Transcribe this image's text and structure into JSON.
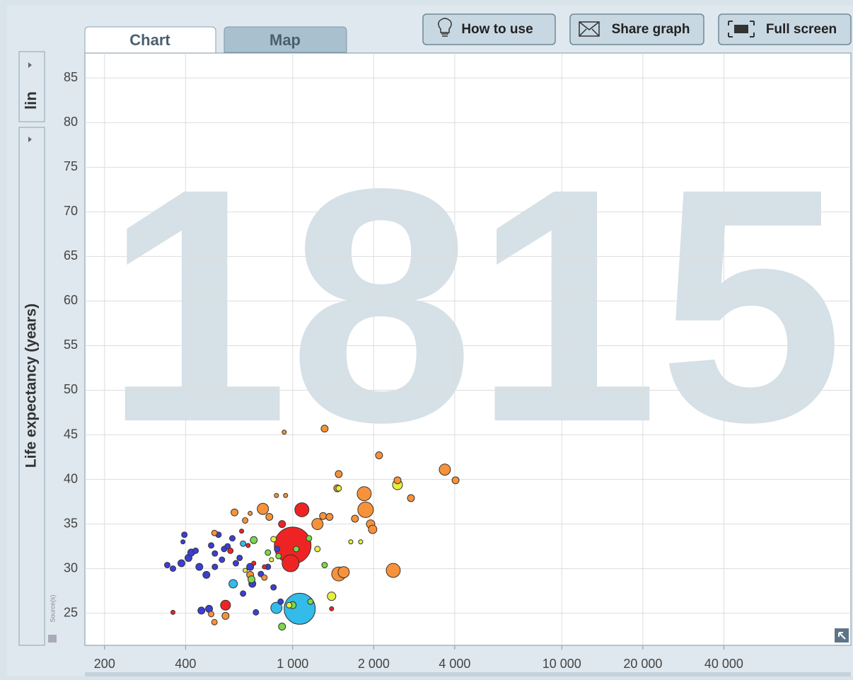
{
  "ui": {
    "tabs": [
      "Chart",
      "Map"
    ],
    "buttons": [
      "How to use",
      "Share graph",
      "Full screen"
    ],
    "scale_selector": "lin",
    "source_label": "Source(s)"
  },
  "chart_data": {
    "type": "scatter",
    "year_label": "1815",
    "y_label": "Life expectancy (years)",
    "xscale": "log",
    "grid": true,
    "xlim": [
      169,
      118600
    ],
    "ylim": [
      21.4,
      87.8
    ],
    "xticks": [
      200,
      400,
      {
        "value": 1000,
        "label": "1 000"
      },
      {
        "value": 2000,
        "label": "2 000"
      },
      {
        "value": 4000,
        "label": "4 000"
      },
      {
        "value": 10000,
        "label": "10 000"
      },
      {
        "value": 20000,
        "label": "20 000"
      },
      {
        "value": 40000,
        "label": "40 000"
      }
    ],
    "yticks": [
      25,
      30,
      35,
      40,
      45,
      50,
      55,
      60,
      65,
      70,
      75,
      80,
      85
    ],
    "series": [
      {
        "color": "#3b3fd6",
        "x": [
          342,
          359,
          396,
          391,
          386,
          410,
          420,
          436,
          450,
          478,
          498,
          514,
          530,
          514,
          546,
          556,
          573,
          597,
          458,
          489,
          615,
          635,
          695,
          708,
          654,
          730,
          762,
          809,
          849,
          875,
          902
        ],
        "values": [
          30.4,
          30.0,
          33.8,
          33.0,
          30.6,
          31.2,
          31.8,
          32.0,
          30.2,
          29.3,
          32.6,
          31.7,
          33.8,
          30.2,
          31.0,
          32.2,
          32.5,
          33.4,
          25.3,
          25.5,
          30.6,
          31.2,
          30.2,
          28.3,
          27.2,
          25.1,
          29.4,
          30.2,
          27.9,
          32.2,
          26.3
        ],
        "sizes": [
          7,
          7,
          7,
          4,
          11,
          11,
          11,
          7,
          11,
          11,
          7,
          7,
          7,
          7,
          7,
          7,
          7,
          7,
          11,
          11,
          7,
          7,
          11,
          11,
          7,
          7,
          7,
          7,
          7,
          7,
          7
        ]
      },
      {
        "color": "#ee2424",
        "x": [
          359,
          563,
          587,
          646,
          683,
          913,
          1000,
          982,
          1082,
          1395,
          717,
          785
        ],
        "values": [
          25.1,
          25.9,
          32.0,
          34.2,
          32.6,
          35.0,
          32.6,
          30.6,
          36.6,
          25.5,
          30.6,
          30.2
        ],
        "sizes": [
          4,
          22,
          7,
          4,
          4,
          11,
          300,
          64,
          44,
          4,
          4,
          4
        ]
      },
      {
        "color": "#f7923a",
        "x": [
          498,
          512,
          512,
          563,
          608,
          666,
          695,
          775,
          819,
          870,
          941,
          930,
          1314,
          1236,
          1297,
          1370,
          1483,
          1465,
          1483,
          1547,
          1704,
          1844,
          1866,
          1948,
          1982,
          2094,
          2452,
          2364,
          2751,
          3676,
          4029,
          695,
          785
        ],
        "values": [
          24.9,
          24.0,
          34.0,
          24.7,
          36.3,
          35.4,
          36.2,
          36.7,
          35.8,
          38.2,
          38.2,
          45.3,
          45.7,
          35.0,
          35.9,
          35.8,
          40.6,
          39.0,
          29.4,
          29.6,
          35.6,
          38.4,
          36.6,
          35.0,
          34.4,
          42.7,
          39.9,
          29.8,
          37.9,
          41.1,
          39.9,
          29.3,
          29.0
        ],
        "sizes": [
          7,
          7,
          7,
          11,
          11,
          7,
          4,
          28,
          11,
          4,
          4,
          4,
          11,
          28,
          11,
          11,
          11,
          11,
          44,
          28,
          11,
          44,
          54,
          16,
          16,
          11,
          11,
          44,
          11,
          28,
          11,
          11,
          7
        ]
      },
      {
        "color": "#e6f03c",
        "x": [
          2452,
          1395,
          1644,
          1789,
          1483,
          849,
          1236,
          970,
          666,
          834
        ],
        "values": [
          39.4,
          26.9,
          33.0,
          33.0,
          39.0,
          33.3,
          32.2,
          25.9,
          29.8,
          31.0
        ],
        "sizes": [
          22,
          16,
          4,
          4,
          7,
          7,
          7,
          7,
          4,
          4
        ]
      },
      {
        "color": "#7ad94a",
        "x": [
          913,
          717,
          809,
          886,
          1031,
          1150,
          1314,
          703,
          1000,
          1164
        ],
        "values": [
          23.5,
          33.2,
          31.8,
          31.4,
          32.2,
          33.4,
          30.4,
          28.8,
          25.9,
          26.3
        ],
        "sizes": [
          11,
          11,
          7,
          7,
          7,
          7,
          7,
          11,
          11,
          7
        ]
      },
      {
        "color": "#33bbea",
        "x": [
          1062,
          870,
          601,
          654
        ],
        "values": [
          25.5,
          25.6,
          28.3,
          32.8
        ],
        "sizes": [
          215,
          28,
          16,
          7
        ]
      }
    ]
  }
}
